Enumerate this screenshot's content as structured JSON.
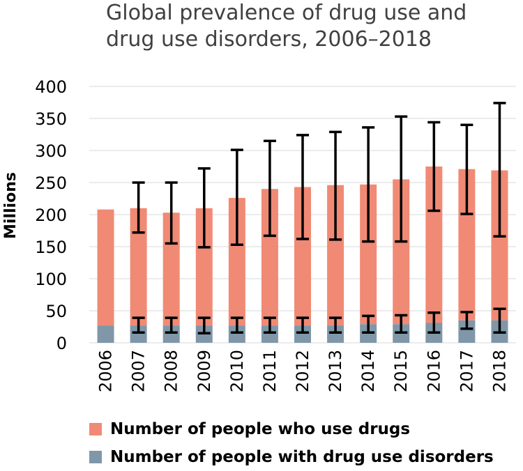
{
  "chart_data": {
    "type": "bar",
    "stacked": true,
    "title_lines": [
      "Global prevalence of drug use and",
      "drug use disorders, 2006–2018"
    ],
    "ylabel": "Millions",
    "xlabel": "",
    "ylim": [
      0,
      400
    ],
    "yticks": [
      0,
      50,
      100,
      150,
      200,
      250,
      300,
      350,
      400
    ],
    "ytick_labels": [
      "0",
      "50",
      "100",
      "150",
      "200",
      "250",
      "300",
      "350",
      "400"
    ],
    "grid": true,
    "categories": [
      "2006",
      "2007",
      "2008",
      "2009",
      "2010",
      "2011",
      "2012",
      "2013",
      "2014",
      "2015",
      "2016",
      "2017",
      "2018"
    ],
    "series": [
      {
        "name": "Number of people who use drugs",
        "color": "#F08A75",
        "values": [
          208,
          210,
          203,
          210,
          226,
          240,
          243,
          246,
          247,
          255,
          275,
          271,
          269
        ],
        "error_low": [
          null,
          172,
          155,
          149,
          153,
          167,
          162,
          161,
          158,
          158,
          206,
          201,
          166
        ],
        "error_high": [
          null,
          250,
          250,
          272,
          301,
          315,
          324,
          329,
          336,
          353,
          344,
          340,
          374
        ]
      },
      {
        "name": "Number of people with drug use disorders",
        "color": "#7F97A8",
        "values": [
          27,
          27,
          27,
          27,
          27,
          27,
          27,
          27,
          29,
          29,
          31,
          35,
          35
        ],
        "error_low": [
          null,
          16,
          16,
          15,
          16,
          16,
          16,
          16,
          16,
          16,
          16,
          22,
          16
        ],
        "error_high": [
          null,
          39,
          39,
          39,
          39,
          39,
          39,
          39,
          42,
          43,
          47,
          48,
          53
        ]
      }
    ],
    "error_bar_color": "#000000",
    "legend_position": "bottom"
  }
}
